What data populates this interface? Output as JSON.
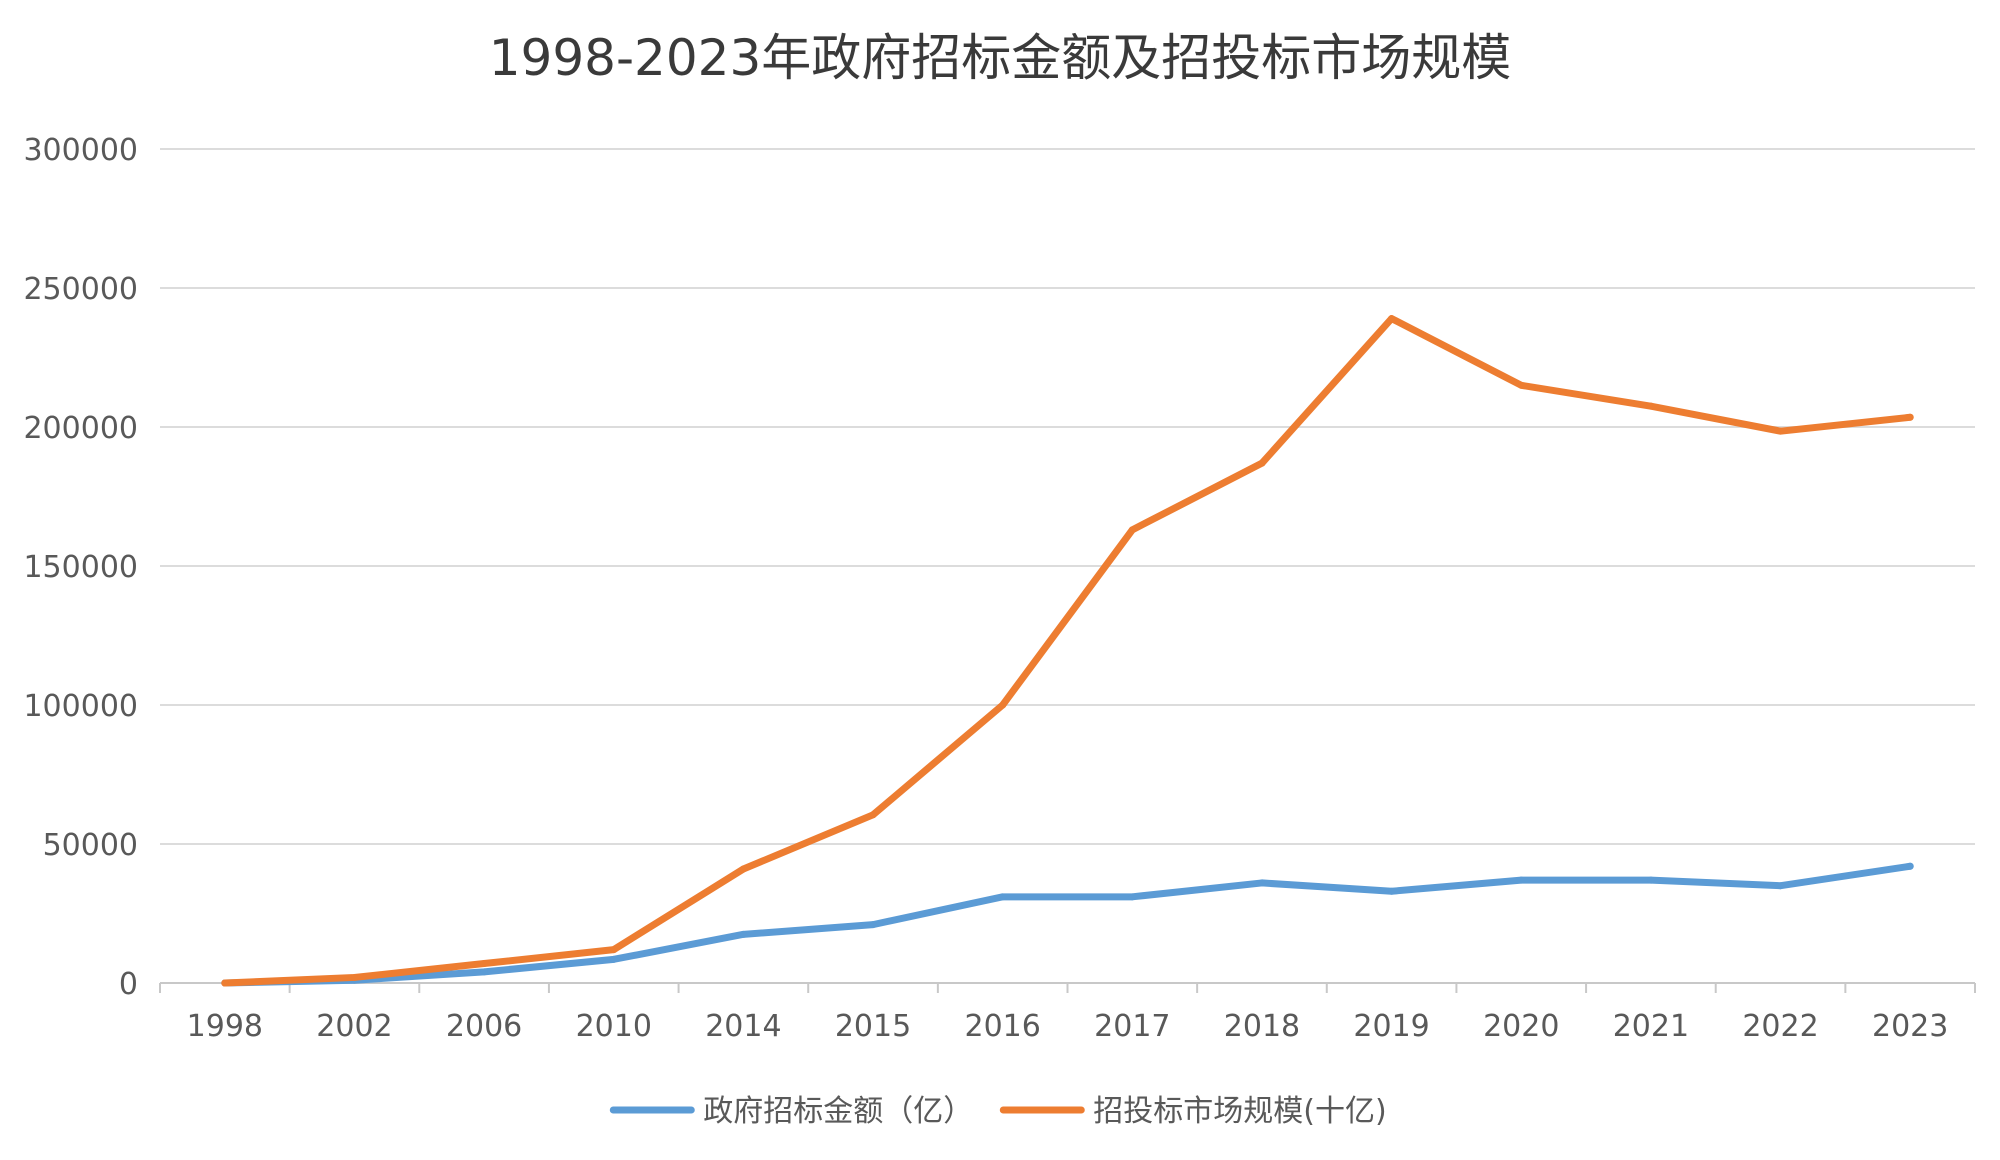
{
  "chart_data": {
    "type": "line",
    "title": "1998-2023年政府招标金额及招投标市场规模",
    "xlabel": "",
    "ylabel": "",
    "categories": [
      "1998",
      "2002",
      "2006",
      "2010",
      "2014",
      "2015",
      "2016",
      "2017",
      "2018",
      "2019",
      "2020",
      "2021",
      "2022",
      "2023"
    ],
    "ylim": [
      0,
      300000
    ],
    "yticks": [
      0,
      50000,
      100000,
      150000,
      200000,
      250000,
      300000
    ],
    "ytick_labels": [
      "0",
      "50000",
      "100000",
      "150000",
      "200000",
      "250000",
      "300000"
    ],
    "grid": true,
    "legend_position": "bottom",
    "series": [
      {
        "name": "政府招标金额（亿）",
        "color": "#5b9bd5",
        "values": [
          0,
          1000,
          4000,
          8500,
          17500,
          21000,
          31000,
          31000,
          36000,
          33000,
          37000,
          37000,
          35000,
          42000
        ]
      },
      {
        "name": "招投标市场规模(十亿)",
        "color": "#ed7d31",
        "values": [
          0,
          2000,
          7000,
          12000,
          41000,
          60500,
          100000,
          163000,
          187000,
          239000,
          215000,
          207500,
          198500,
          203500
        ]
      }
    ]
  }
}
